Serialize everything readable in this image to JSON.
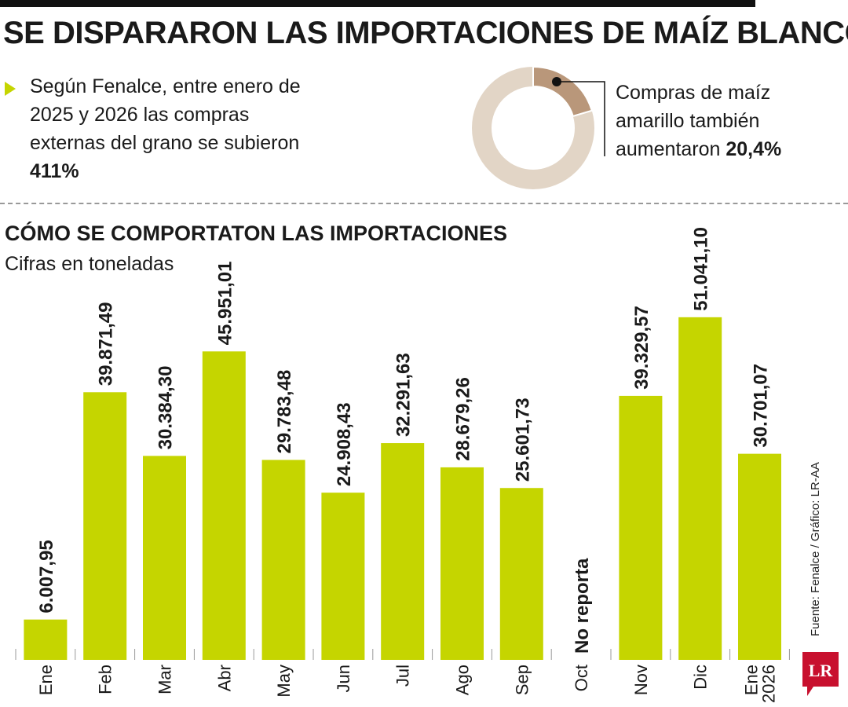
{
  "header": {
    "title": "SE DISPARARON LAS IMPORTACIONES DE MAÍZ BLANCO"
  },
  "intro": {
    "text": "Según Fenalce, entre enero de 2025 y 2026 las compras externas del grano se subieron ",
    "highlight": "411%"
  },
  "donut": {
    "text": "Compras de maíz amarillo también aumentaron ",
    "highlight": "20,4%",
    "share": 0.204,
    "colors": {
      "slice": "#b9977a",
      "rest": "#e2d5c6"
    }
  },
  "section": {
    "title": "CÓMO SE COMPORTATON LAS IMPORTACIONES",
    "unit": "Cifras en toneladas"
  },
  "chart_data": {
    "type": "bar",
    "categories": [
      "Ene",
      "Feb",
      "Mar",
      "Abr",
      "May",
      "Jun",
      "Jul",
      "Ago",
      "Sep",
      "Oct",
      "Nov",
      "Dic",
      "Ene 2026"
    ],
    "category_lines": [
      [
        "Ene"
      ],
      [
        "Feb"
      ],
      [
        "Mar"
      ],
      [
        "Abr"
      ],
      [
        "May"
      ],
      [
        "Jun"
      ],
      [
        "Jul"
      ],
      [
        "Ago"
      ],
      [
        "Sep"
      ],
      [
        "Oct"
      ],
      [
        "Nov"
      ],
      [
        "Dic"
      ],
      [
        "Ene",
        "2026"
      ]
    ],
    "values": [
      6007.95,
      39871.49,
      30384.3,
      45951.01,
      29783.48,
      24908.43,
      32291.63,
      28679.26,
      25601.73,
      null,
      39329.57,
      51041.1,
      30701.07
    ],
    "labels": [
      "6.007,95",
      "39.871,49",
      "30.384,30",
      "45.951,01",
      "29.783,48",
      "24.908,43",
      "32.291,63",
      "28.679,26",
      "25.601,73",
      "No reporta",
      "39.329,57",
      "51.041,10",
      "30.701,07"
    ],
    "ylim": [
      0,
      55000
    ],
    "bar_color": "#c5d500",
    "grid": false
  },
  "footer": {
    "source": "Fuente: Fenalce / Gráfico: LR-AA",
    "logo": "LR"
  }
}
